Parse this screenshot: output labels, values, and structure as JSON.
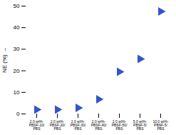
{
  "chart_data": {
    "type": "scatter",
    "categories": [
      "2.0 wt%-\nPBSF-10/\nPBS",
      "2.0 wt%-\nPBSF-20/\nPBS",
      "2.0 wt%-\nPBSF-30/\nPBS",
      "2.0 wt%-\nPBSF-40/\nPBS",
      "2.0 wt%-\nPBSF-50/\nPBS",
      "5.0 wt%-\nPBSF-5/\nPBS",
      "10.0 wt%-\nPBSF-5/\nPBS"
    ],
    "values": [
      2.0,
      2.0,
      2.8,
      6.8,
      19.5,
      25.5,
      47.5
    ],
    "color": "#3355cc",
    "marker": "triangle-right",
    "ylabel": "NE (%)",
    "ylim": [
      0,
      50
    ],
    "yticks": [
      0,
      10,
      20,
      30,
      40,
      50
    ],
    "grid": false
  }
}
